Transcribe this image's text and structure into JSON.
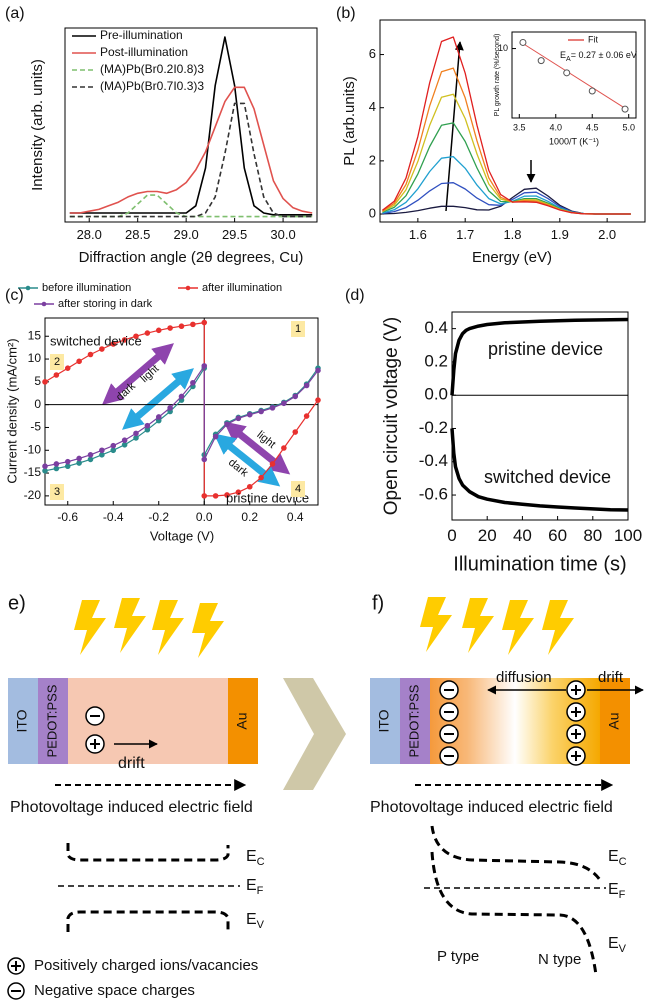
{
  "chart_data": [
    {
      "type": "line",
      "panel": "(a)",
      "xlabel": "Diffraction angle (2θ degrees, Cu)",
      "ylabel": "Intensity (arb. units)",
      "x": [
        27.8,
        27.9,
        28.0,
        28.1,
        28.2,
        28.3,
        28.4,
        28.5,
        28.6,
        28.7,
        28.8,
        28.9,
        29.0,
        29.1,
        29.2,
        29.3,
        29.4,
        29.5,
        29.6,
        29.7,
        29.8,
        29.9,
        30.0,
        30.1,
        30.2,
        30.3
      ],
      "series": [
        {
          "name": "Pre-illumination",
          "color": "#000000",
          "linestyle": "solid",
          "values": [
            0.02,
            0.02,
            0.02,
            0.02,
            0.02,
            0.02,
            0.02,
            0.02,
            0.02,
            0.02,
            0.02,
            0.02,
            0.02,
            0.06,
            0.27,
            0.73,
            1.0,
            0.73,
            0.27,
            0.06,
            0.02,
            0.01,
            0.01,
            0.01,
            0.01,
            0.01
          ]
        },
        {
          "name": "Post-illumination",
          "color": "#e0524e",
          "linestyle": "solid",
          "values": [
            0.02,
            0.02,
            0.03,
            0.04,
            0.06,
            0.08,
            0.11,
            0.13,
            0.14,
            0.14,
            0.13,
            0.15,
            0.19,
            0.26,
            0.36,
            0.5,
            0.64,
            0.72,
            0.72,
            0.6,
            0.4,
            0.2,
            0.1,
            0.05,
            0.03,
            0.02
          ]
        },
        {
          "name": "(MA)Pb(Br0.2I0.8)3",
          "color": "#7fbf6f",
          "linestyle": "dashed",
          "values": [
            0,
            0,
            0,
            0,
            0,
            0,
            0.02,
            0.07,
            0.12,
            0.12,
            0.07,
            0.02,
            0,
            0,
            0,
            0,
            0,
            0,
            0,
            0,
            0,
            0,
            0,
            0,
            0,
            0
          ]
        },
        {
          "name": "(MA)Pb(Br0.7I0.3)3",
          "color": "#333333",
          "linestyle": "dashed",
          "values": [
            0,
            0,
            0,
            0,
            0,
            0,
            0,
            0,
            0,
            0,
            0,
            0,
            0,
            0,
            0.02,
            0.11,
            0.35,
            0.63,
            0.63,
            0.35,
            0.11,
            0.02,
            0,
            0,
            0,
            0
          ]
        }
      ],
      "xlim": [
        27.75,
        30.35
      ],
      "ylim": [
        -0.03,
        1.05
      ],
      "xticks": [
        {
          "value": 28,
          "label": "28.0"
        },
        28.5,
        {
          "value": 29,
          "label": "29.0"
        },
        29.5,
        {
          "value": 30,
          "label": "30.0"
        }
      ],
      "legend": "upper left"
    },
    {
      "type": "line",
      "panel": "(b)",
      "xlabel": "Energy (eV)",
      "ylabel": "PL (arb.units)",
      "x": [
        1.525,
        1.55,
        1.575,
        1.6,
        1.625,
        1.65,
        1.675,
        1.7,
        1.725,
        1.75,
        1.775,
        1.8,
        1.825,
        1.85,
        1.875,
        1.9,
        1.925,
        1.95,
        1.975,
        2,
        2.025,
        2.05
      ],
      "series": [
        {
          "color": "#1a1a40",
          "linestyle": "solid",
          "values": [
            0.01,
            0.02,
            0.06,
            0.13,
            0.22,
            0.29,
            0.29,
            0.24,
            0.16,
            0.15,
            0.29,
            0.62,
            0.93,
            0.97,
            0.68,
            0.33,
            0.11,
            0.02,
            0,
            0,
            0,
            0
          ]
        },
        {
          "color": "#3050c0",
          "linestyle": "solid",
          "values": [
            0.02,
            0.09,
            0.24,
            0.52,
            0.87,
            1.15,
            1.18,
            0.94,
            0.6,
            0.35,
            0.33,
            0.55,
            0.8,
            0.82,
            0.58,
            0.28,
            0.09,
            0.02,
            0,
            0,
            0,
            0
          ]
        },
        {
          "color": "#20a0d0",
          "linestyle": "solid",
          "values": [
            0.04,
            0.16,
            0.44,
            0.95,
            1.6,
            2.1,
            2.16,
            1.72,
            1.09,
            0.58,
            0.38,
            0.48,
            0.67,
            0.68,
            0.48,
            0.23,
            0.07,
            0.02,
            0,
            0,
            0,
            0
          ]
        },
        {
          "color": "#30a050",
          "linestyle": "solid",
          "values": [
            0.07,
            0.25,
            0.69,
            1.51,
            2.54,
            3.34,
            3.43,
            2.73,
            1.73,
            0.87,
            0.47,
            0.46,
            0.58,
            0.58,
            0.41,
            0.2,
            0.06,
            0.01,
            0,
            0,
            0,
            0
          ]
        },
        {
          "color": "#d0c020",
          "linestyle": "solid",
          "values": [
            0.09,
            0.33,
            0.91,
            1.98,
            3.34,
            4.39,
            4.51,
            3.59,
            2.26,
            1.13,
            0.56,
            0.45,
            0.54,
            0.53,
            0.37,
            0.18,
            0.06,
            0.01,
            0,
            0,
            0,
            0
          ]
        },
        {
          "color": "#f08020",
          "linestyle": "solid",
          "values": [
            0.11,
            0.4,
            1.11,
            2.41,
            4.07,
            5.35,
            5.49,
            4.37,
            2.75,
            1.36,
            0.63,
            0.45,
            0.5,
            0.48,
            0.34,
            0.16,
            0.05,
            0.01,
            0,
            0,
            0,
            0
          ]
        },
        {
          "color": "#e02020",
          "linestyle": "solid",
          "values": [
            0.14,
            0.48,
            1.35,
            2.92,
            4.94,
            6.49,
            6.66,
            5.3,
            3.34,
            1.64,
            0.73,
            0.45,
            0.46,
            0.44,
            0.31,
            0.15,
            0.05,
            0.01,
            0,
            0,
            0,
            0
          ]
        }
      ],
      "xlim": [
        1.52,
        2.08
      ],
      "ylim": [
        -0.3,
        7.3
      ],
      "xticks": [
        1.6,
        1.7,
        1.8,
        1.9,
        {
          "value": 2,
          "label": "2.0"
        }
      ],
      "yticks": [
        0,
        2,
        4,
        6
      ]
    },
    {
      "type": "line",
      "xlabel": "1000/T (K⁻¹)",
      "ylabel": "PL growth rate (%/second)",
      "log_y": true,
      "fit_label": {
        "main": "E",
        "sub": "A",
        "rest": "= 0.27 ± 0.06  eV"
      },
      "series": [
        {
          "name": "Fit",
          "color": "#e0524e",
          "linestyle": "solid",
          "x": [
            3.55,
            4.95
          ],
          "values": [
            14,
            0.19
          ]
        },
        {
          "color": "#555555",
          "linestyle": "none",
          "marker": "circle",
          "marker_face": "none",
          "x": [
            3.55,
            3.8,
            4.15,
            4.5,
            4.95
          ],
          "values": [
            15,
            4.5,
            2,
            0.6,
            0.18
          ]
        }
      ],
      "xlim": [
        3.4,
        5.1
      ],
      "ylim": [
        0.1,
        30
      ],
      "xticks": [
        3.5,
        {
          "value": 4,
          "label": "4.0"
        },
        4.5,
        {
          "value": 5,
          "label": "5.0"
        }
      ],
      "yticks": [
        10
      ],
      "legend": "upper right"
    },
    {
      "type": "line",
      "panel": "(c)",
      "xlabel": "Voltage (V)",
      "ylabel": "Current density (mA/cm²)",
      "x": [
        -0.7,
        -0.65,
        -0.6,
        -0.55,
        -0.5,
        -0.45,
        -0.4,
        -0.35,
        -0.3,
        -0.25,
        -0.2,
        -0.15,
        -0.1,
        -0.05,
        0,
        0,
        0.05,
        0.1,
        0.15,
        0.2,
        0.25,
        0.3,
        0.35,
        0.4,
        0.45,
        0.5
      ],
      "series": [
        {
          "name": "before illumination",
          "color": "#2a8c8c",
          "linestyle": "solid",
          "marker": "circle",
          "values": [
            -14.5,
            -14,
            -13.5,
            -12.8,
            -12,
            -11,
            -10,
            -8.8,
            -7.3,
            -5.5,
            -3.5,
            -1.5,
            1,
            4,
            8,
            -11,
            -6.5,
            -4,
            -2.8,
            -2,
            -1.3,
            -0.5,
            0.5,
            2,
            4.5,
            8
          ]
        },
        {
          "name": "after illumination",
          "color": "#e8312f",
          "linestyle": "solid",
          "marker": "circle",
          "values": [
            5,
            6.5,
            8,
            9.5,
            11,
            12.2,
            13.3,
            14.2,
            15,
            15.7,
            16.3,
            16.8,
            17.2,
            17.6,
            18,
            -20,
            -20,
            -19.8,
            -19.2,
            -18,
            -16,
            -13,
            -9.5,
            -6,
            -2.5,
            1
          ]
        },
        {
          "name": "after storing in dark",
          "color": "#7b3fa0",
          "linestyle": "solid",
          "marker": "circle",
          "values": [
            -13.5,
            -13,
            -12.5,
            -11.8,
            -11,
            -10,
            -9,
            -7.8,
            -6.3,
            -4.6,
            -2.7,
            -0.7,
            1.8,
            4.8,
            8.5,
            -12,
            -7,
            -4.3,
            -3,
            -2.2,
            -1.5,
            -0.7,
            0.3,
            1.8,
            4.2,
            7.5
          ]
        }
      ],
      "xlim": [
        -0.7,
        0.5
      ],
      "ylim": [
        -22,
        19
      ],
      "xticks": [
        -0.6,
        -0.4,
        -0.2,
        {
          "value": 0,
          "label": "0.0"
        },
        0.2,
        0.4
      ],
      "yticks": [
        -20,
        -15,
        -10,
        -5,
        0,
        5,
        10,
        15
      ],
      "annotations": [
        "switched device",
        "pristine device",
        "light",
        "dark",
        "light",
        "dark"
      ],
      "quadrants": [
        "1",
        "2",
        "3",
        "4"
      ],
      "legend": "top"
    },
    {
      "type": "line",
      "panel": "(d)",
      "xlabel": "Illumination time (s)",
      "ylabel": "Open circuit voltage (V)",
      "x": [
        0,
        1,
        2,
        4,
        6,
        8,
        10,
        15,
        20,
        30,
        40,
        50,
        60,
        70,
        80,
        90,
        100
      ],
      "series": [
        {
          "color": "#000000",
          "linestyle": "solid",
          "values": [
            0,
            0.15,
            0.25,
            0.33,
            0.37,
            0.39,
            0.4,
            0.415,
            0.425,
            0.435,
            0.44,
            0.445,
            0.448,
            0.45,
            0.452,
            0.454,
            0.455
          ]
        },
        {
          "color": "#000000",
          "linestyle": "solid",
          "values": [
            -0.2,
            -0.35,
            -0.43,
            -0.5,
            -0.54,
            -0.56,
            -0.58,
            -0.61,
            -0.625,
            -0.645,
            -0.655,
            -0.665,
            -0.672,
            -0.678,
            -0.683,
            -0.688,
            -0.69
          ]
        }
      ],
      "xlim": [
        0,
        100
      ],
      "ylim": [
        -0.75,
        0.5
      ],
      "xticks": [
        0,
        20,
        40,
        60,
        80,
        100
      ],
      "yticks": [
        -0.6,
        -0.4,
        -0.2,
        {
          "value": 0,
          "label": "0.0"
        },
        0.2,
        0.4
      ],
      "annotations": [
        "pristine device",
        "switched device"
      ]
    }
  ],
  "diagram": {
    "e": {
      "label": "e)",
      "layers": [
        "ITO",
        "PEDOT:PSS",
        "Au"
      ],
      "drift": "drift",
      "field": "Photovoltage induced electric field",
      "bands": [
        {
          "main": "E",
          "sub": "C"
        },
        {
          "main": "E",
          "sub": "F"
        },
        {
          "main": "E",
          "sub": "V"
        }
      ]
    },
    "f": {
      "label": "f)",
      "layers": [
        "ITO",
        "PEDOT:PSS",
        "Au"
      ],
      "diffusion": "diffusion",
      "drift": "drift",
      "field": "Photovoltage induced electric field",
      "bands": [
        {
          "main": "E",
          "sub": "C"
        },
        {
          "main": "E",
          "sub": "F"
        },
        {
          "main": "E",
          "sub": "V"
        }
      ],
      "regions": [
        "P type",
        "N type"
      ]
    },
    "legend": [
      "Positively charged ions/vacancies",
      "Negative space charges"
    ]
  }
}
